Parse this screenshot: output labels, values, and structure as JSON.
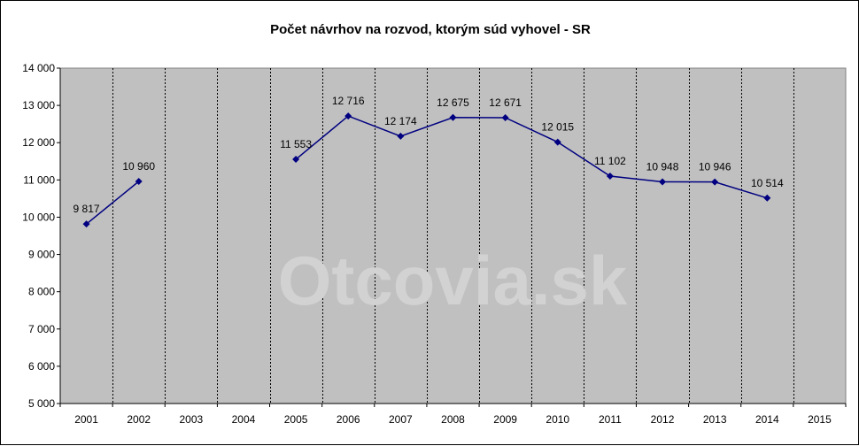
{
  "chart_data": {
    "type": "line",
    "title": "Počet návrhov na rozvod, ktorým súd vyhovel - SR",
    "categories": [
      "2001",
      "2002",
      "2003",
      "2004",
      "2005",
      "2006",
      "2007",
      "2008",
      "2009",
      "2010",
      "2011",
      "2012",
      "2013",
      "2014",
      "2015"
    ],
    "series": [
      {
        "values": [
          9817,
          10960,
          null,
          null,
          11553,
          12716,
          12174,
          12675,
          12671,
          12015,
          11102,
          10948,
          10946,
          10514,
          null
        ],
        "labels": [
          "9 817",
          "10 960",
          "",
          "",
          "11 553",
          "12 716",
          "12 174",
          "12 675",
          "12 671",
          "12 015",
          "11 102",
          "10 948",
          "10 946",
          "10 514",
          ""
        ],
        "color": "#000080"
      }
    ],
    "ylim": [
      5000,
      14000
    ],
    "yticks": [
      5000,
      6000,
      7000,
      8000,
      9000,
      10000,
      11000,
      12000,
      13000,
      14000
    ],
    "ytick_labels": [
      "5 000",
      "6 000",
      "7 000",
      "8 000",
      "9 000",
      "10 000",
      "11 000",
      "12 000",
      "13 000",
      "14 000"
    ],
    "xlabel": "",
    "ylabel": "",
    "grid": "vertical dashed lines between categories",
    "legend": "none",
    "plot_background": "#c0c0c0",
    "marker": "diamond",
    "watermark": "Otcovia.sk"
  }
}
